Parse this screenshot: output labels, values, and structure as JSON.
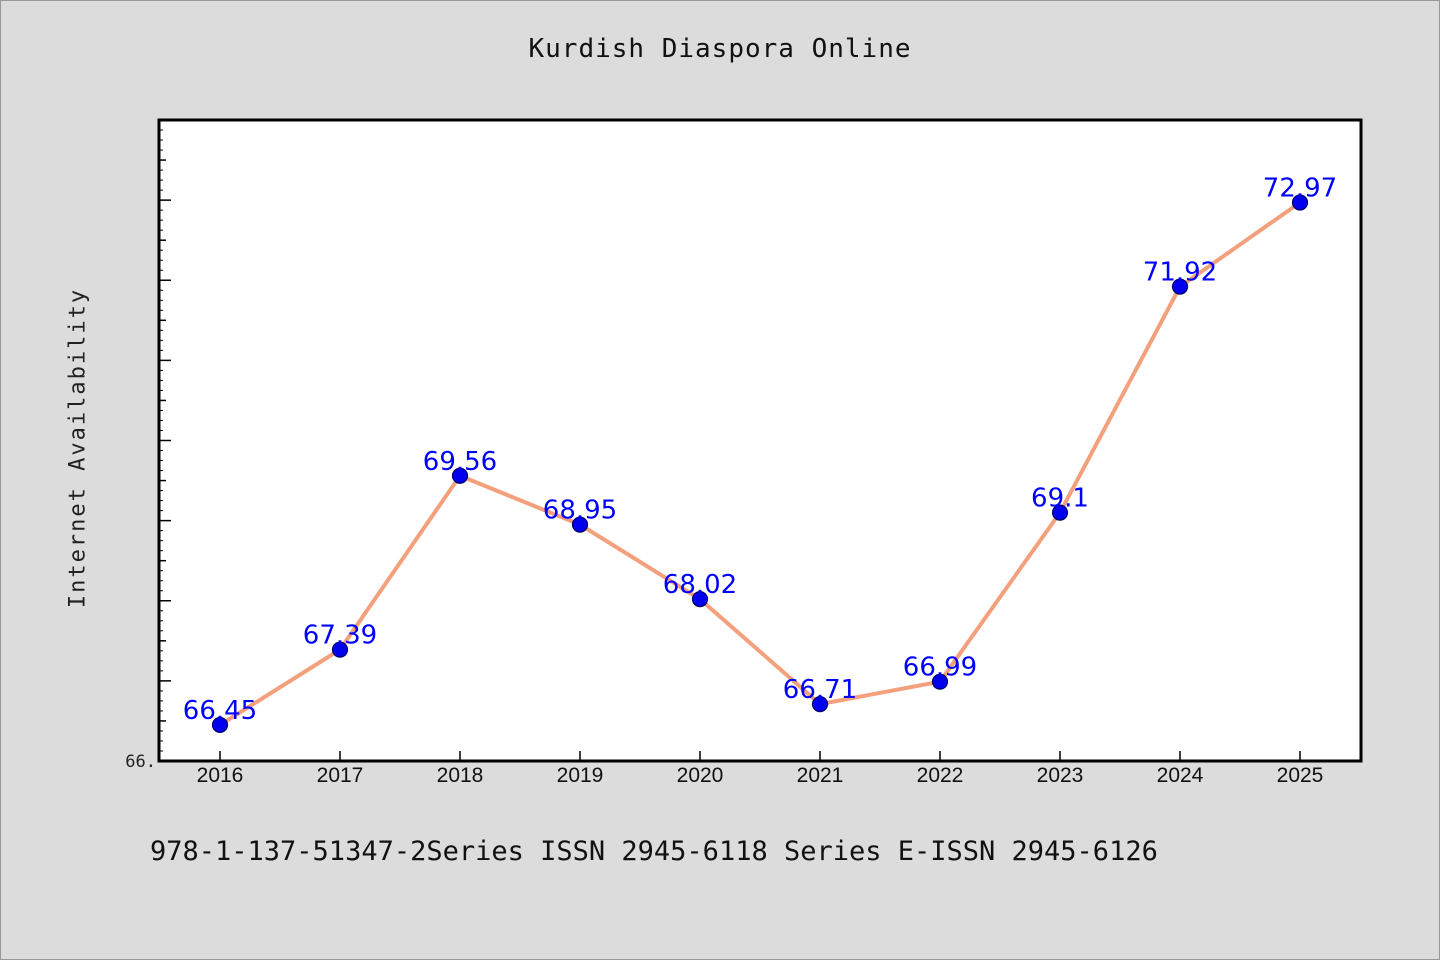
{
  "chart_data": {
    "type": "line",
    "title": "Kurdish Diaspora Online",
    "xlabel": "",
    "ylabel": "Internet Availability",
    "x": [
      "2016",
      "2017",
      "2018",
      "2019",
      "2020",
      "2021",
      "2022",
      "2023",
      "2024",
      "2025"
    ],
    "values": [
      66.45,
      67.39,
      69.56,
      68.95,
      68.02,
      66.71,
      66.99,
      69.1,
      71.92,
      72.97
    ],
    "data_labels": [
      "66.45",
      "67.39",
      "69.56",
      "68.95",
      "68.02",
      "66.71",
      "66.99",
      "69.1",
      "71.92",
      "72.97"
    ],
    "y_tick_label": "66.",
    "ylim": [
      66.0,
      74.0
    ],
    "grid": false,
    "legend": "none",
    "colors": {
      "line": "#f4a07c",
      "marker": "#0000ee",
      "data_label": "#0000ff",
      "plot_background": "#ffffff",
      "page_background": "#dcdcdc"
    }
  },
  "footer": {
    "text": "978-1-137-51347-2Series ISSN 2945-6118 Series E-ISSN 2945-6126"
  }
}
